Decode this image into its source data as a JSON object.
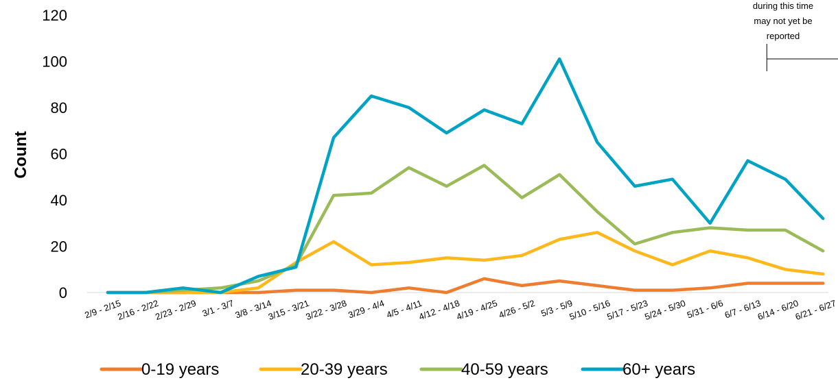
{
  "chart_data": {
    "type": "line",
    "title": "",
    "xlabel": "",
    "ylabel": "Count",
    "ylim": [
      0,
      120
    ],
    "yticks": [
      0,
      20,
      40,
      60,
      80,
      100,
      120
    ],
    "grid": {
      "horizontal": false,
      "vertical": false
    },
    "legend_position": "bottom",
    "categories": [
      "2/9 - 2/15",
      "2/16 - 2/22",
      "2/23 - 2/29",
      "3/1 - 3/7",
      "3/8 - 3/14",
      "3/15 - 3/21",
      "3/22 - 3/28",
      "3/29 - 4/4",
      "4/5 - 4/11",
      "4/12 - 4/18",
      "4/19 - 4/25",
      "4/26 - 5/2",
      "5/3 - 5/9",
      "5/10 - 5/16",
      "5/17 - 5/23",
      "5/24 - 5/30",
      "5/31 - 6/6",
      "6/7 - 6/13",
      "6/14 - 6/20",
      "6/21 - 6/27"
    ],
    "series": [
      {
        "name": "0-19 years",
        "color": "#ED7D31",
        "values": [
          0,
          0,
          0,
          0,
          0,
          1,
          1,
          0,
          2,
          0,
          6,
          3,
          5,
          3,
          1,
          1,
          2,
          4,
          4,
          4
        ]
      },
      {
        "name": "20-39 years",
        "color": "#FFB81C",
        "values": [
          0,
          0,
          0,
          0,
          2,
          13,
          22,
          12,
          13,
          15,
          14,
          16,
          23,
          26,
          18,
          12,
          18,
          15,
          10,
          8
        ]
      },
      {
        "name": "40-59 years",
        "color": "#9BBB59",
        "values": [
          0,
          0,
          1,
          2,
          5,
          12,
          42,
          43,
          54,
          46,
          55,
          41,
          51,
          35,
          21,
          26,
          28,
          27,
          27,
          18
        ]
      },
      {
        "name": "60+ years",
        "color": "#00A3C4",
        "values": [
          0,
          0,
          2,
          0,
          7,
          11,
          67,
          85,
          80,
          69,
          79,
          73,
          101,
          65,
          46,
          49,
          30,
          57,
          49,
          32
        ]
      }
    ],
    "annotation": {
      "lines": [
        "during this time",
        "may not yet be",
        "reported"
      ],
      "bracket_from_category": "6/14 - 6/20",
      "bracket_to_category": "6/21 - 6/27"
    }
  }
}
